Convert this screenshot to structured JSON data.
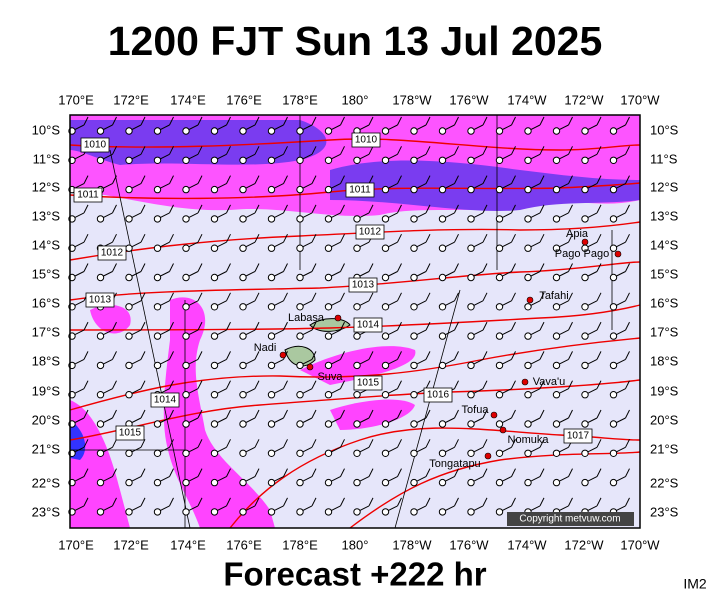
{
  "title": "1200 FJT Sun 13 Jul 2025",
  "lon_labels": [
    "170°E",
    "172°E",
    "174°E",
    "176°E",
    "178°E",
    "180°",
    "178°W",
    "176°W",
    "174°W",
    "172°W",
    "170°W"
  ],
  "lat_labels": [
    "10°S",
    "11°S",
    "12°S",
    "13°S",
    "14°S",
    "15°S",
    "16°S",
    "17°S",
    "18°S",
    "19°S",
    "20°S",
    "21°S",
    "22°S",
    "23°S"
  ],
  "isobar_labels": [
    "1010",
    "1010",
    "1011",
    "1011",
    "1012",
    "1012",
    "1013",
    "1013",
    "1014",
    "1014",
    "1015",
    "1015",
    "1016",
    "1017"
  ],
  "places": [
    "Apia",
    "Pago Pago",
    "Tafahi",
    "Labasa",
    "Nadi",
    "Suva",
    "Vava'u",
    "Tofua",
    "Nomuka",
    "Tongatapu"
  ],
  "copyright": "Copyright metvuw.com",
  "forecast": "Forecast +222 hr",
  "image_id": "IM2"
}
